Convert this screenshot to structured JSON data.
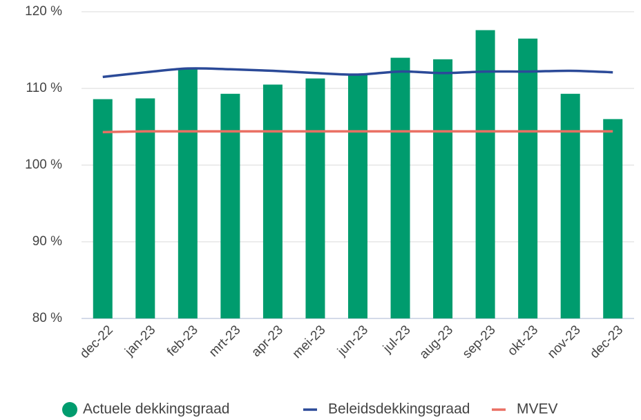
{
  "chart_data": {
    "type": "bar",
    "categories": [
      "dec-22",
      "jan-23",
      "feb-23",
      "mrt-23",
      "apr-23",
      "mei-23",
      "jun-23",
      "jul-23",
      "aug-23",
      "sep-23",
      "okt-23",
      "nov-23",
      "dec-23"
    ],
    "series": [
      {
        "name": "Actuele dekkingsgraad",
        "type": "bar",
        "color": "#009c6e",
        "values": [
          108.6,
          108.7,
          112.6,
          109.3,
          110.5,
          111.3,
          111.8,
          114.0,
          113.8,
          117.6,
          116.5,
          109.3,
          106.0
        ]
      },
      {
        "name": "Beleidsdekkingsgraad",
        "type": "line",
        "color": "#2b4a98",
        "values": [
          111.5,
          112.1,
          112.6,
          112.5,
          112.3,
          112.0,
          111.8,
          112.2,
          112.0,
          112.2,
          112.2,
          112.3,
          112.1
        ]
      },
      {
        "name": "MVEV",
        "type": "line",
        "color": "#ea6f63",
        "values": [
          104.3,
          104.4,
          104.4,
          104.4,
          104.4,
          104.4,
          104.4,
          104.4,
          104.4,
          104.4,
          104.4,
          104.4,
          104.4
        ]
      }
    ],
    "ylim": [
      80,
      120
    ],
    "yticks": [
      {
        "value": 80,
        "label": "80 %"
      },
      {
        "value": 90,
        "label": "90 %"
      },
      {
        "value": 100,
        "label": "100 %"
      },
      {
        "value": 110,
        "label": "110 %"
      },
      {
        "value": 120,
        "label": "120 %"
      }
    ],
    "grid": true,
    "legend": "bottom"
  }
}
